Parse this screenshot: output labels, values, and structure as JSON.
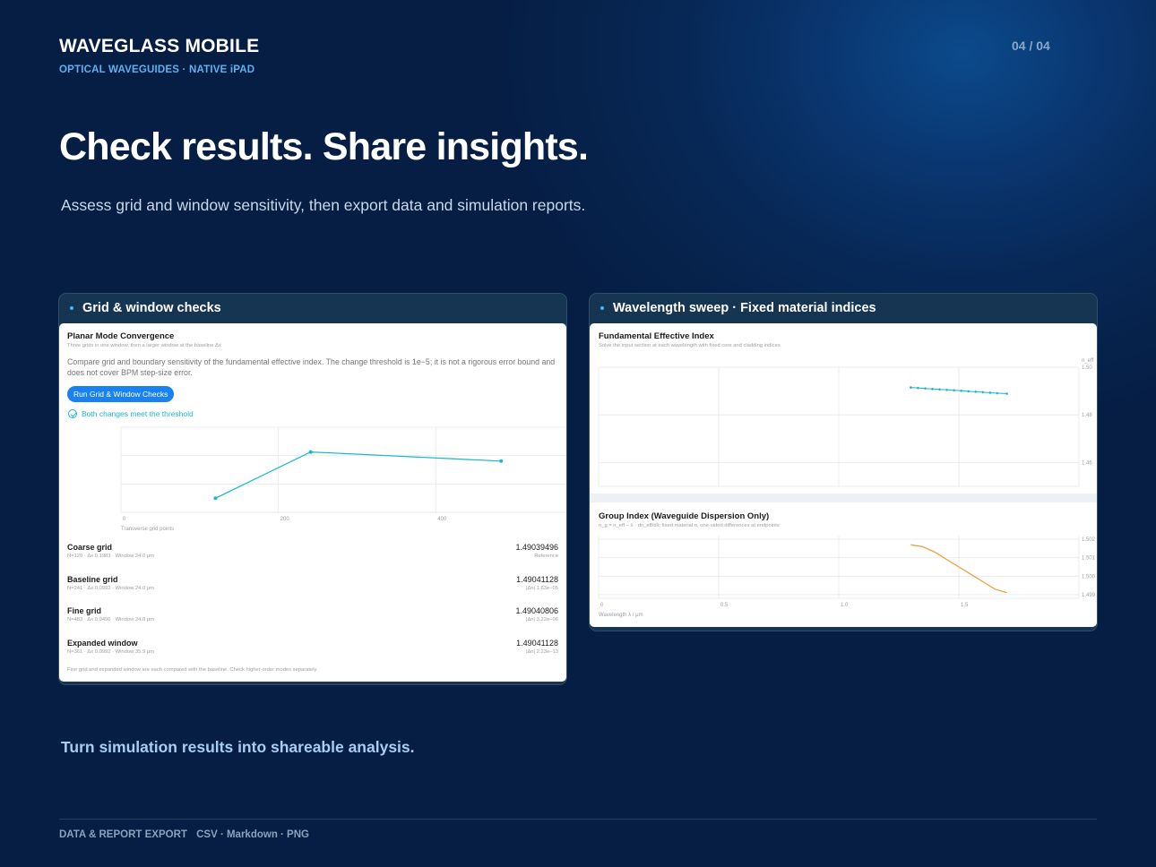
{
  "brand": {
    "title": "WAVEGLASS MOBILE",
    "subtitle": "OPTICAL WAVEGUIDES · NATIVE iPAD"
  },
  "page_number": "04 / 04",
  "hero": {
    "title": "Check results. Share insights.",
    "subtitle": "Assess grid and window sensitivity, then export data and simulation reports."
  },
  "left_card": {
    "header": "Grid & window checks",
    "panel_title": "Planar Mode Convergence",
    "panel_subtitle": "Three grids in one window, then a larger window at the baseline Δx",
    "description": "Compare grid and boundary sensitivity of the fundamental effective index. The change threshold is 1e−5; it is not a rigorous error bound and does not cover BPM step-size error.",
    "run_button": "Run Grid & Window Checks",
    "status": "Both changes meet the threshold",
    "rows": [
      {
        "name": "Coarse grid",
        "meta": "N=120 · Δx 0.1983 · Window 24.0 μm",
        "value": "1.49039496",
        "note": "Reference"
      },
      {
        "name": "Baseline grid",
        "meta": "N=241 · Δx 0.0992 · Window 24.0 μm",
        "value": "1.49041128",
        "note": "|Δn| 1.63e−05"
      },
      {
        "name": "Fine grid",
        "meta": "N=483 · Δx 0.0496 · Window 24.0 μm",
        "value": "1.49040806",
        "note": "|Δn| 3.22e−06"
      },
      {
        "name": "Expanded window",
        "meta": "N=361 · Δx 0.0992 · Window 35.9 μm",
        "value": "1.49041128",
        "note": "|Δn| 2.23e−13"
      }
    ],
    "footnote": "Fine grid and expanded window are each compared with the baseline. Check higher-order modes separately."
  },
  "right_card": {
    "header": "Wavelength sweep · Fixed material indices",
    "top_title": "Fundamental Effective Index",
    "top_subtitle": "Solve the input section at each wavelength with fixed core and cladding indices",
    "bottom_title": "Group Index (Waveguide Dispersion Only)",
    "bottom_subtitle": "n_g = n_eff − λ · dn_eff/dλ; fixed material n, one-sided differences at endpoints"
  },
  "chart_data": [
    {
      "type": "line",
      "xlabel": "Transverse grid points",
      "ylabel": "",
      "xlim": [
        0,
        600
      ],
      "ylim": [
        1.49039,
        1.49042
      ],
      "x_ticks": [
        "0",
        "200",
        "400"
      ],
      "y_ticks": [
        "1.49042",
        "1.49041",
        "1.49040",
        "1.49039"
      ],
      "grid": true,
      "color": "#19b8cc",
      "x": [
        120,
        241,
        483
      ],
      "values": [
        1.49039496,
        1.49041128,
        1.49040806
      ]
    },
    {
      "type": "line",
      "xlabel": "Wavelength λ / μm",
      "ylabel": "n_eff",
      "xlim": [
        0,
        2.0
      ],
      "ylim": [
        1.45,
        1.5
      ],
      "x_ticks": [
        "0",
        "0.5",
        "1.0",
        "1.5"
      ],
      "y_ticks": [
        "1.50",
        "1.48",
        "1.46"
      ],
      "grid": true,
      "color": "#19b8cc",
      "x": [
        1.3,
        1.33,
        1.36,
        1.39,
        1.42,
        1.45,
        1.48,
        1.51,
        1.54,
        1.57,
        1.6,
        1.63,
        1.66,
        1.7
      ],
      "values": [
        1.4915,
        1.4913,
        1.4911,
        1.4909,
        1.4907,
        1.4905,
        1.4903,
        1.4901,
        1.4899,
        1.4897,
        1.4895,
        1.4893,
        1.4891,
        1.4889
      ]
    },
    {
      "type": "line",
      "xlabel": "Wavelength λ / μm",
      "ylabel": "",
      "xlim": [
        0,
        2.0
      ],
      "ylim": [
        1.4988,
        1.5022
      ],
      "x_ticks": [
        "0",
        "0.5",
        "1.0",
        "1.5"
      ],
      "y_ticks": [
        "1.502",
        "1.501",
        "1.500",
        "1.499"
      ],
      "grid": true,
      "color": "#f0a040",
      "x": [
        1.3,
        1.35,
        1.4,
        1.45,
        1.5,
        1.55,
        1.6,
        1.65,
        1.7
      ],
      "values": [
        1.5017,
        1.5016,
        1.5013,
        1.5009,
        1.5005,
        1.5001,
        1.4997,
        1.4993,
        1.4991
      ]
    }
  ],
  "tagline": "Turn simulation results into shareable analysis.",
  "footer": {
    "label": "DATA & REPORT EXPORT",
    "formats": "CSV · Markdown · PNG"
  }
}
